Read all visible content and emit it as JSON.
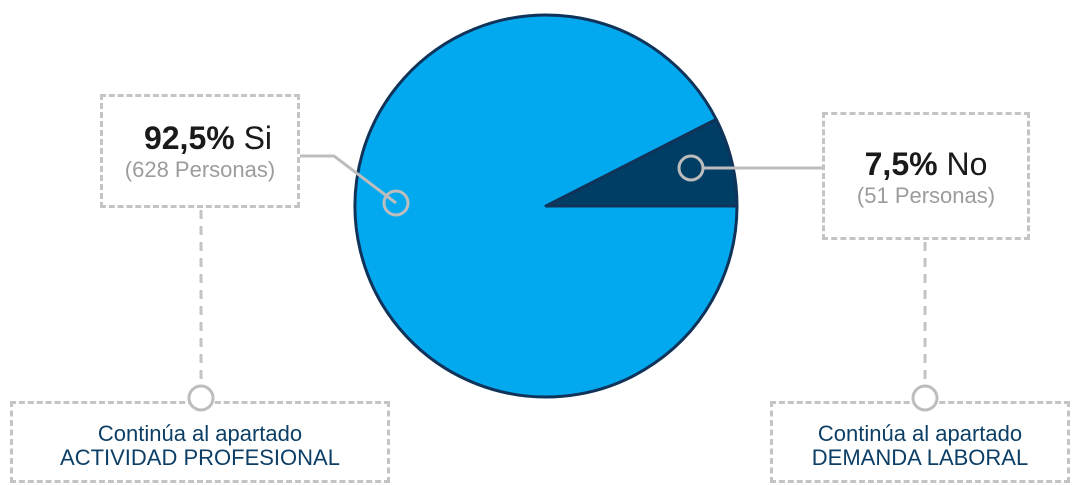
{
  "chart_data": {
    "type": "pie",
    "slices": [
      {
        "label": "Si",
        "percent_text": "92,5%",
        "value": 92.5,
        "count_text": "(628 Personas)",
        "color": "#03a9ef"
      },
      {
        "label": "No",
        "percent_text": "7,5%",
        "value": 7.5,
        "count_text": "(51 Personas)",
        "color": "#003e65"
      }
    ]
  },
  "outcomes": {
    "si": {
      "line1": "Continúa al apartado",
      "line2": "ACTIVIDAD PROFESIONAL"
    },
    "no": {
      "line1": "Continúa al apartado",
      "line2": "DEMANDA LABORAL"
    }
  },
  "colors": {
    "pie_outline": "#10335a",
    "connector": "#bdbdbd",
    "dashed_border": "#c4c4c4",
    "outcome_text": "#0d3f66"
  }
}
